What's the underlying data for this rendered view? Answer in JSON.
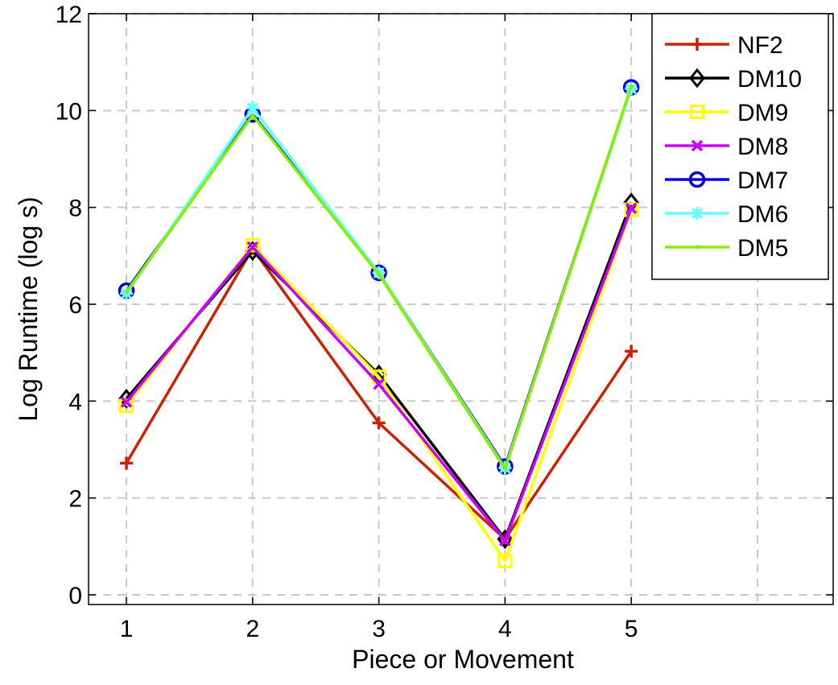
{
  "chart_data": {
    "type": "line",
    "title": "",
    "xlabel": "Piece or Movement",
    "ylabel": "Log Runtime (log s)",
    "x": [
      1,
      2,
      3,
      4,
      5
    ],
    "xlim": [
      0.7,
      6.6
    ],
    "ylim": [
      -0.2,
      12
    ],
    "x_ticks": [
      "1",
      "2",
      "3",
      "4",
      "5"
    ],
    "y_ticks": [
      "0",
      "2",
      "4",
      "6",
      "8",
      "10",
      "12"
    ],
    "grid": true,
    "grid_style": "dashed",
    "legend_position": "top-right",
    "series": [
      {
        "name": "NF2",
        "color": "#cc2200",
        "marker": "plus",
        "values": [
          2.72,
          7.15,
          3.55,
          1.15,
          5.03
        ]
      },
      {
        "name": "DM10",
        "color": "#000000",
        "marker": "diamond",
        "values": [
          4.05,
          7.1,
          4.55,
          1.15,
          8.1
        ]
      },
      {
        "name": "DM9",
        "color": "#ffff00",
        "marker": "square",
        "values": [
          3.9,
          7.22,
          4.5,
          0.7,
          7.95
        ]
      },
      {
        "name": "DM8",
        "color": "#cc00ff",
        "marker": "x",
        "values": [
          3.98,
          7.18,
          4.35,
          1.12,
          7.98
        ]
      },
      {
        "name": "DM7",
        "color": "#0000dd",
        "marker": "circle",
        "values": [
          6.28,
          9.92,
          6.65,
          2.65,
          10.48
        ]
      },
      {
        "name": "DM6",
        "color": "#66ffff",
        "marker": "asterisk",
        "values": [
          6.22,
          10.05,
          6.65,
          2.62,
          10.45
        ]
      },
      {
        "name": "DM5",
        "color": "#88ee00",
        "marker": "dot",
        "values": [
          6.25,
          9.9,
          6.62,
          2.6,
          10.5
        ]
      }
    ]
  }
}
